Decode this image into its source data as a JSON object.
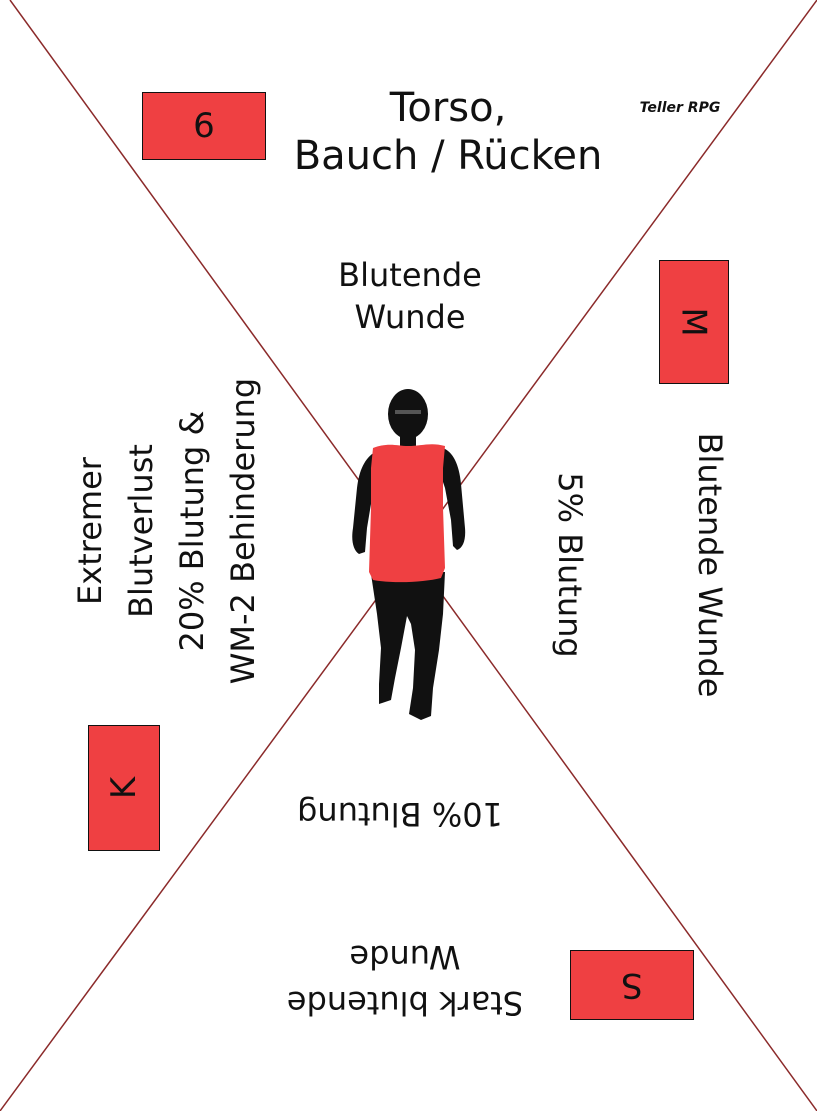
{
  "card": {
    "number": "6",
    "title_line1": "Torso,",
    "title_line2": "Bauch / Rücken",
    "brand": "Teller RPG",
    "zones": {
      "top": {
        "effect_line1": "Blutende",
        "effect_line2": "Wunde"
      },
      "right": {
        "letter": "M",
        "effect": "Blutende Wunde",
        "bleed": "5% Blutung"
      },
      "bottom": {
        "letter": "S",
        "effect_line1": "Stark blutende",
        "effect_line2": "Wunde",
        "bleed": "10% Blutung"
      },
      "left": {
        "letter": "K",
        "line1": "Extremer",
        "line2": "Blutverlust",
        "line3": "20% Blutung &",
        "line4": "WM-2 Behinderung"
      }
    }
  },
  "colors": {
    "accent_red": "#ef4042",
    "diagonal_line": "#8b2a2a",
    "figure": "#111111"
  },
  "icons": {
    "figure": "human-silhouette-icon"
  }
}
